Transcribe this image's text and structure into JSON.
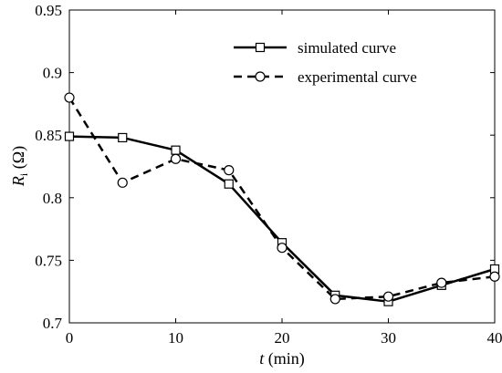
{
  "chart_data": {
    "type": "line",
    "x": [
      0,
      5,
      10,
      15,
      20,
      25,
      30,
      35,
      40
    ],
    "series": [
      {
        "name": "simulated curve",
        "marker": "square",
        "dash": "solid",
        "values": [
          0.849,
          0.848,
          0.838,
          0.811,
          0.764,
          0.722,
          0.717,
          0.73,
          0.743
        ]
      },
      {
        "name": "experimental curve",
        "marker": "circle",
        "dash": "dashed",
        "values": [
          0.88,
          0.812,
          0.831,
          0.822,
          0.76,
          0.719,
          0.721,
          0.732,
          0.737
        ]
      }
    ],
    "xlim": [
      0,
      40
    ],
    "ylim": [
      0.7,
      0.95
    ],
    "xticks": [
      "0",
      "10",
      "20",
      "30",
      "40"
    ],
    "yticks": [
      "0.7",
      "0.75",
      "0.8",
      "0.85",
      "0.9",
      "0.95"
    ],
    "xlabel": {
      "italic": "t",
      "rest": " (min)"
    },
    "ylabel": {
      "italic": "R",
      "sub": "i",
      "rest": " (Ω)"
    },
    "legend_position": "top-right",
    "grid": false,
    "color": "#000000"
  }
}
